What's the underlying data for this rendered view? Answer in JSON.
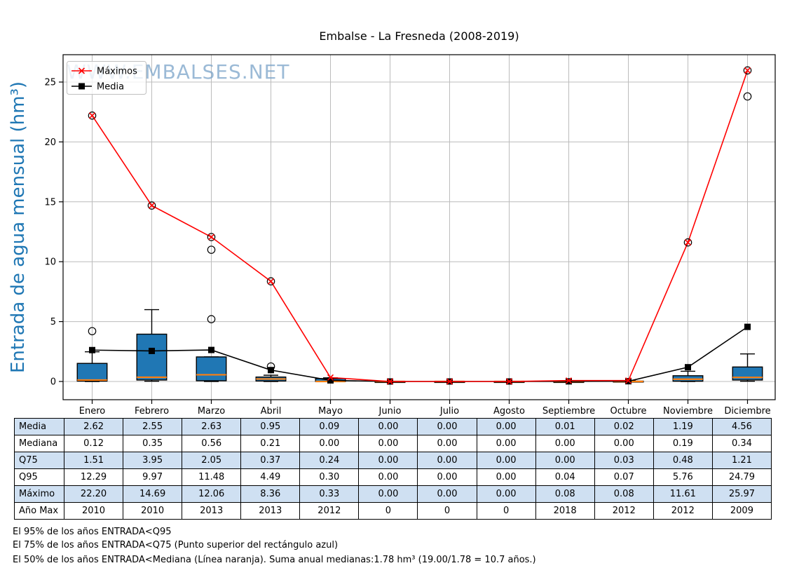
{
  "title": "Embalse - La Fresneda (2008-2019)",
  "watermark": "WWW.EMBALSES.NET",
  "chart_data": {
    "type": "boxplot+line",
    "title": "Embalse - La Fresneda (2008-2019)",
    "ylabel": "Entrada de agua mensual (hm³)",
    "ylim": [
      -1.5,
      27.3
    ],
    "yticks": [
      0,
      5,
      10,
      15,
      20,
      25
    ],
    "grid": true,
    "legend_position": "upper-left",
    "categories": [
      "Enero",
      "Febrero",
      "Marzo",
      "Abril",
      "Mayo",
      "Junio",
      "Julio",
      "Agosto",
      "Septiembre",
      "Octubre",
      "Noviembre",
      "Diciembre"
    ],
    "series": [
      {
        "name": "Máximos",
        "type": "line",
        "color": "#ff0000",
        "marker": "x",
        "values": [
          22.2,
          14.69,
          12.06,
          8.36,
          0.33,
          0.0,
          0.0,
          0.0,
          0.08,
          0.08,
          11.61,
          25.97
        ]
      },
      {
        "name": "Media",
        "type": "line",
        "color": "#000000",
        "marker": "square",
        "values": [
          2.62,
          2.55,
          2.63,
          0.95,
          0.09,
          0.0,
          0.0,
          0.0,
          0.01,
          0.02,
          1.19,
          4.56
        ]
      }
    ],
    "boxplots": [
      {
        "q1": 0.03,
        "median": 0.12,
        "q3": 1.51,
        "whisker_low": 0.0,
        "whisker_high": 2.48,
        "outliers": [
          4.2
        ]
      },
      {
        "q1": 0.12,
        "median": 0.35,
        "q3": 3.95,
        "whisker_low": 0.02,
        "whisker_high": 6.0,
        "outliers": []
      },
      {
        "q1": 0.06,
        "median": 0.56,
        "q3": 2.05,
        "whisker_low": 0.0,
        "whisker_high": 2.05,
        "outliers": [
          5.2,
          11.0
        ]
      },
      {
        "q1": 0.04,
        "median": 0.21,
        "q3": 0.37,
        "whisker_low": 0.0,
        "whisker_high": 0.52,
        "outliers": [
          1.25
        ]
      },
      {
        "q1": 0.0,
        "median": 0.0,
        "q3": 0.24,
        "whisker_low": 0.0,
        "whisker_high": 0.3,
        "outliers": []
      },
      {
        "q1": 0.0,
        "median": 0.0,
        "q3": 0.0,
        "whisker_low": 0.0,
        "whisker_high": 0.0,
        "outliers": []
      },
      {
        "q1": 0.0,
        "median": 0.0,
        "q3": 0.0,
        "whisker_low": 0.0,
        "whisker_high": 0.0,
        "outliers": []
      },
      {
        "q1": 0.0,
        "median": 0.0,
        "q3": 0.0,
        "whisker_low": 0.0,
        "whisker_high": 0.0,
        "outliers": []
      },
      {
        "q1": 0.0,
        "median": 0.0,
        "q3": 0.0,
        "whisker_low": 0.0,
        "whisker_high": 0.04,
        "outliers": []
      },
      {
        "q1": 0.0,
        "median": 0.0,
        "q3": 0.03,
        "whisker_low": 0.0,
        "whisker_high": 0.07,
        "outliers": []
      },
      {
        "q1": 0.02,
        "median": 0.19,
        "q3": 0.48,
        "whisker_low": 0.0,
        "whisker_high": 0.85,
        "outliers": []
      },
      {
        "q1": 0.12,
        "median": 0.34,
        "q3": 1.21,
        "whisker_low": 0.02,
        "whisker_high": 2.3,
        "outliers": [
          23.8
        ]
      }
    ],
    "colors": {
      "box_fill": "#2077b4",
      "box_edge": "#000000",
      "median_line": "#ff7f0e",
      "max_line": "#ff0000",
      "media_line": "#000000",
      "grid": "#bcbcbc",
      "ylabel": "#1f77b4",
      "watermark": "#7aa3c9"
    }
  },
  "table": {
    "columns": [
      "Enero",
      "Febrero",
      "Marzo",
      "Abril",
      "Mayo",
      "Junio",
      "Julio",
      "Agosto",
      "Septiembre",
      "Octubre",
      "Noviembre",
      "Diciembre"
    ],
    "row_labels": [
      "Media",
      "Mediana",
      "Q75",
      "Q95",
      "Máximo",
      "Año Max"
    ],
    "rows": [
      [
        "2.62",
        "2.55",
        "2.63",
        "0.95",
        "0.09",
        "0.00",
        "0.00",
        "0.00",
        "0.01",
        "0.02",
        "1.19",
        "4.56"
      ],
      [
        "0.12",
        "0.35",
        "0.56",
        "0.21",
        "0.00",
        "0.00",
        "0.00",
        "0.00",
        "0.00",
        "0.00",
        "0.19",
        "0.34"
      ],
      [
        "1.51",
        "3.95",
        "2.05",
        "0.37",
        "0.24",
        "0.00",
        "0.00",
        "0.00",
        "0.00",
        "0.03",
        "0.48",
        "1.21"
      ],
      [
        "12.29",
        "9.97",
        "11.48",
        "4.49",
        "0.30",
        "0.00",
        "0.00",
        "0.00",
        "0.04",
        "0.07",
        "5.76",
        "24.79"
      ],
      [
        "22.20",
        "14.69",
        "12.06",
        "8.36",
        "0.33",
        "0.00",
        "0.00",
        "0.00",
        "0.08",
        "0.08",
        "11.61",
        "25.97"
      ],
      [
        "2010",
        "2010",
        "2013",
        "2013",
        "2012",
        "0",
        "0",
        "0",
        "2018",
        "2012",
        "2012",
        "2009"
      ]
    ],
    "alt_row_color": "#cfe0f2"
  },
  "notes": [
    "El 95% de los años ENTRADA<Q95",
    "El 75% de los años ENTRADA<Q75 (Punto superior del rectángulo azul)",
    "El 50% de los años ENTRADA<Mediana (Línea naranja). Suma anual medianas:1.78 hm³ (19.00/1.78 = 10.7 años.)"
  ]
}
